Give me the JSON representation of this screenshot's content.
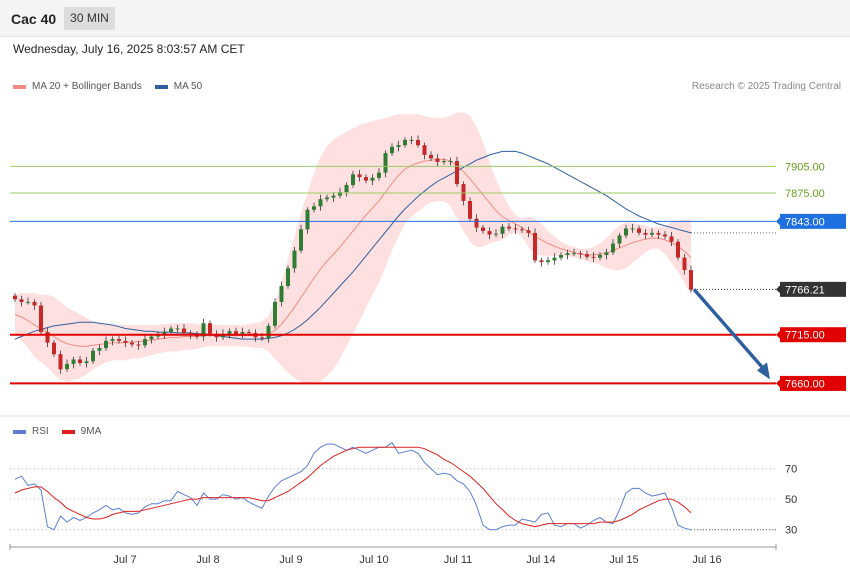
{
  "header": {
    "instrument": "Cac 40",
    "timeframe": "30 MIN",
    "datetime": "Wednesday, July 16, 2025 8:03:57 AM CET"
  },
  "legend": {
    "price": [
      {
        "label": "MA 20 + Bollinger Bands",
        "color": "#f28b82"
      },
      {
        "label": "MA 50",
        "color": "#2f5f9e"
      }
    ],
    "rsi": [
      {
        "label": "RSI",
        "color": "#5b7fd4"
      },
      {
        "label": "9MA",
        "color": "#e02020"
      }
    ]
  },
  "credit": "Research © 2025 Trading Central",
  "colors": {
    "up": "#2e7d32",
    "down": "#c62828",
    "band": "#ffd6d6",
    "arrow": "#2f5f9e"
  },
  "chart_data": [
    {
      "type": "candlestick",
      "ylim": [
        7630,
        7980
      ],
      "x_tick_labels": [
        "Jul 7",
        "Jul 8",
        "Jul 9",
        "Jul 10",
        "Jul 11",
        "Jul 14",
        "Jul 15",
        "Jul 16"
      ],
      "levels": [
        {
          "value": 7905.0,
          "label": "7905.00",
          "kind": "target",
          "color": "#9ccc65"
        },
        {
          "value": 7875.0,
          "label": "7875.00",
          "kind": "target",
          "color": "#9ccc65"
        },
        {
          "value": 7843.0,
          "label": "7843.00",
          "kind": "pivot",
          "color": "#1e6fe0"
        },
        {
          "value": 7766.21,
          "label": "7766.21",
          "kind": "last",
          "color": "#333333"
        },
        {
          "value": 7715.0,
          "label": "7715.00",
          "kind": "support",
          "color": "#e00000"
        },
        {
          "value": 7660.0,
          "label": "7660.00",
          "kind": "support",
          "color": "#e00000"
        }
      ],
      "close": [
        7755,
        7752,
        7752,
        7748,
        7718,
        7706,
        7693,
        7676,
        7682,
        7687,
        7683,
        7685,
        7697,
        7700,
        7708,
        7710,
        7708,
        7706,
        7704,
        7703,
        7710,
        7713,
        7715,
        7718,
        7722,
        7722,
        7717,
        7715,
        7713,
        7728,
        7716,
        7712,
        7716,
        7719,
        7716,
        7718,
        7717,
        7712,
        7711,
        7725,
        7752,
        7770,
        7790,
        7810,
        7834,
        7856,
        7860,
        7868,
        7870,
        7872,
        7876,
        7884,
        7896,
        7893,
        7889,
        7892,
        7898,
        7920,
        7927,
        7929,
        7935,
        7935,
        7929,
        7918,
        7914,
        7910,
        7911,
        7911,
        7885,
        7866,
        7846,
        7836,
        7832,
        7828,
        7829,
        7837,
        7835,
        7834,
        7833,
        7830,
        7799,
        7797,
        7799,
        7802,
        7805,
        7807,
        7807,
        7806,
        7803,
        7802,
        7805,
        7808,
        7818,
        7827,
        7835,
        7835,
        7830,
        7828,
        7830,
        7828,
        7826,
        7820,
        7802,
        7788,
        7766
      ],
      "ma20": [
        7738,
        7735,
        7731,
        7726,
        7722,
        7718,
        7713,
        7708,
        7705,
        7703,
        7702,
        7702,
        7703,
        7704,
        7705,
        7706,
        7706,
        7706,
        7707,
        7707,
        7708,
        7709,
        7710,
        7711,
        7712,
        7712,
        7713,
        7713,
        7713,
        7714,
        7714,
        7714,
        7714,
        7714,
        7714,
        7714,
        7714,
        7714,
        7715,
        7716,
        7720,
        7727,
        7736,
        7746,
        7757,
        7768,
        7779,
        7789,
        7798,
        7806,
        7814,
        7823,
        7832,
        7841,
        7850,
        7858,
        7866,
        7876,
        7886,
        7895,
        7902,
        7906,
        7909,
        7911,
        7912,
        7913,
        7913,
        7911,
        7906,
        7899,
        7891,
        7882,
        7873,
        7864,
        7855,
        7848,
        7844,
        7840,
        7836,
        7831,
        7826,
        7822,
        7818,
        7815,
        7812,
        7810,
        7808,
        7806,
        7805,
        7805,
        7806,
        7807,
        7810,
        7813,
        7816,
        7819,
        7821,
        7823,
        7824,
        7824,
        7822,
        7819,
        7815,
        7809,
        7802
      ],
      "bb_up": [
        7760,
        7762,
        7762,
        7762,
        7760,
        7760,
        7758,
        7752,
        7746,
        7742,
        7738,
        7734,
        7730,
        7728,
        7726,
        7726,
        7726,
        7726,
        7726,
        7726,
        7726,
        7726,
        7726,
        7727,
        7728,
        7728,
        7728,
        7728,
        7727,
        7727,
        7726,
        7726,
        7726,
        7726,
        7726,
        7726,
        7727,
        7728,
        7730,
        7736,
        7752,
        7774,
        7800,
        7826,
        7852,
        7876,
        7898,
        7916,
        7928,
        7936,
        7940,
        7944,
        7948,
        7952,
        7954,
        7956,
        7958,
        7960,
        7962,
        7964,
        7964,
        7964,
        7964,
        7962,
        7960,
        7960,
        7960,
        7962,
        7966,
        7966,
        7962,
        7950,
        7932,
        7910,
        7890,
        7874,
        7860,
        7850,
        7846,
        7848,
        7846,
        7840,
        7832,
        7826,
        7820,
        7816,
        7814,
        7812,
        7812,
        7814,
        7818,
        7824,
        7832,
        7838,
        7842,
        7842,
        7840,
        7838,
        7836,
        7836,
        7838,
        7842,
        7844,
        7845,
        7845
      ],
      "bb_lo": [
        7716,
        7708,
        7700,
        7690,
        7684,
        7678,
        7670,
        7664,
        7662,
        7664,
        7666,
        7670,
        7676,
        7680,
        7684,
        7686,
        7686,
        7686,
        7688,
        7688,
        7690,
        7692,
        7694,
        7695,
        7696,
        7696,
        7698,
        7698,
        7699,
        7701,
        7702,
        7702,
        7702,
        7702,
        7702,
        7702,
        7701,
        7700,
        7700,
        7696,
        7688,
        7680,
        7672,
        7666,
        7662,
        7660,
        7660,
        7662,
        7668,
        7676,
        7688,
        7702,
        7716,
        7730,
        7746,
        7760,
        7774,
        7792,
        7810,
        7826,
        7840,
        7848,
        7854,
        7860,
        7864,
        7866,
        7866,
        7860,
        7846,
        7832,
        7820,
        7814,
        7814,
        7818,
        7820,
        7822,
        7828,
        7830,
        7826,
        7814,
        7806,
        7804,
        7804,
        7804,
        7804,
        7804,
        7802,
        7800,
        7798,
        7796,
        7794,
        7790,
        7788,
        7788,
        7790,
        7796,
        7802,
        7808,
        7812,
        7812,
        7806,
        7796,
        7786,
        7773,
        7759
      ],
      "ma50": [
        7710,
        7713,
        7716,
        7719,
        7721,
        7723,
        7725,
        7726,
        7727,
        7728,
        7729,
        7729,
        7729,
        7728,
        7727,
        7726,
        7724,
        7722,
        7721,
        7720,
        7719,
        7719,
        7718,
        7718,
        7718,
        7717,
        7717,
        7717,
        7716,
        7716,
        7715,
        7714,
        7713,
        7712,
        7711,
        7710,
        7710,
        7710,
        7710,
        7711,
        7712,
        7714,
        7717,
        7721,
        7726,
        7732,
        7739,
        7746,
        7754,
        7762,
        7770,
        7778,
        7786,
        7795,
        7804,
        7813,
        7822,
        7831,
        7840,
        7849,
        7857,
        7864,
        7871,
        7877,
        7883,
        7888,
        7892,
        7896,
        7900,
        7904,
        7908,
        7912,
        7915,
        7918,
        7920,
        7922,
        7922,
        7922,
        7920,
        7917,
        7914,
        7911,
        7908,
        7904,
        7900,
        7896,
        7892,
        7888,
        7884,
        7880,
        7876,
        7872,
        7867,
        7862,
        7857,
        7853,
        7849,
        7846,
        7843,
        7840,
        7838,
        7836,
        7834,
        7832,
        7830
      ],
      "forecast": {
        "from": 7766.21,
        "to": 7660.0
      }
    },
    {
      "type": "line",
      "name_series": [
        "RSI",
        "9MA"
      ],
      "ylim": [
        20,
        90
      ],
      "y_ticks": [
        30,
        50,
        70
      ],
      "rsi": [
        63,
        65,
        59,
        60,
        56,
        32,
        30,
        39,
        35,
        38,
        36,
        38,
        41,
        43,
        46,
        43,
        44,
        41,
        40,
        41,
        45,
        47,
        47,
        49,
        49,
        55,
        53,
        51,
        46,
        54,
        50,
        50,
        53,
        52,
        50,
        51,
        48,
        46,
        44,
        52,
        58,
        62,
        64,
        66,
        68,
        72,
        80,
        84,
        86,
        86,
        84,
        82,
        84,
        82,
        80,
        82,
        84,
        84,
        87,
        80,
        81,
        82,
        80,
        74,
        70,
        66,
        67,
        66,
        62,
        60,
        55,
        46,
        33,
        30,
        30,
        32,
        33,
        33,
        37,
        36,
        35,
        40,
        41,
        33,
        32,
        34,
        34,
        31,
        33,
        36,
        38,
        35,
        34,
        43,
        54,
        57,
        57,
        54,
        52,
        53,
        54,
        45,
        33,
        31,
        30
      ],
      "ma9": [
        54,
        56,
        57,
        58,
        58,
        55,
        51,
        48,
        44,
        42,
        40,
        38,
        37,
        37,
        38,
        40,
        41,
        42,
        42,
        42,
        43,
        44,
        45,
        46,
        47,
        48,
        49,
        50,
        50,
        51,
        51,
        51,
        51,
        51,
        51,
        51,
        51,
        50,
        49,
        49,
        51,
        53,
        55,
        58,
        61,
        64,
        68,
        72,
        75,
        78,
        80,
        82,
        83,
        84,
        84,
        84,
        84,
        84,
        84,
        84,
        84,
        84,
        84,
        83,
        81,
        79,
        76,
        74,
        71,
        68,
        65,
        61,
        57,
        52,
        47,
        43,
        39,
        36,
        34,
        33,
        32,
        33,
        34,
        34,
        34,
        34,
        34,
        34,
        34,
        34,
        35,
        35,
        35,
        36,
        38,
        40,
        43,
        45,
        47,
        49,
        50,
        50,
        48,
        45,
        41
      ]
    }
  ]
}
